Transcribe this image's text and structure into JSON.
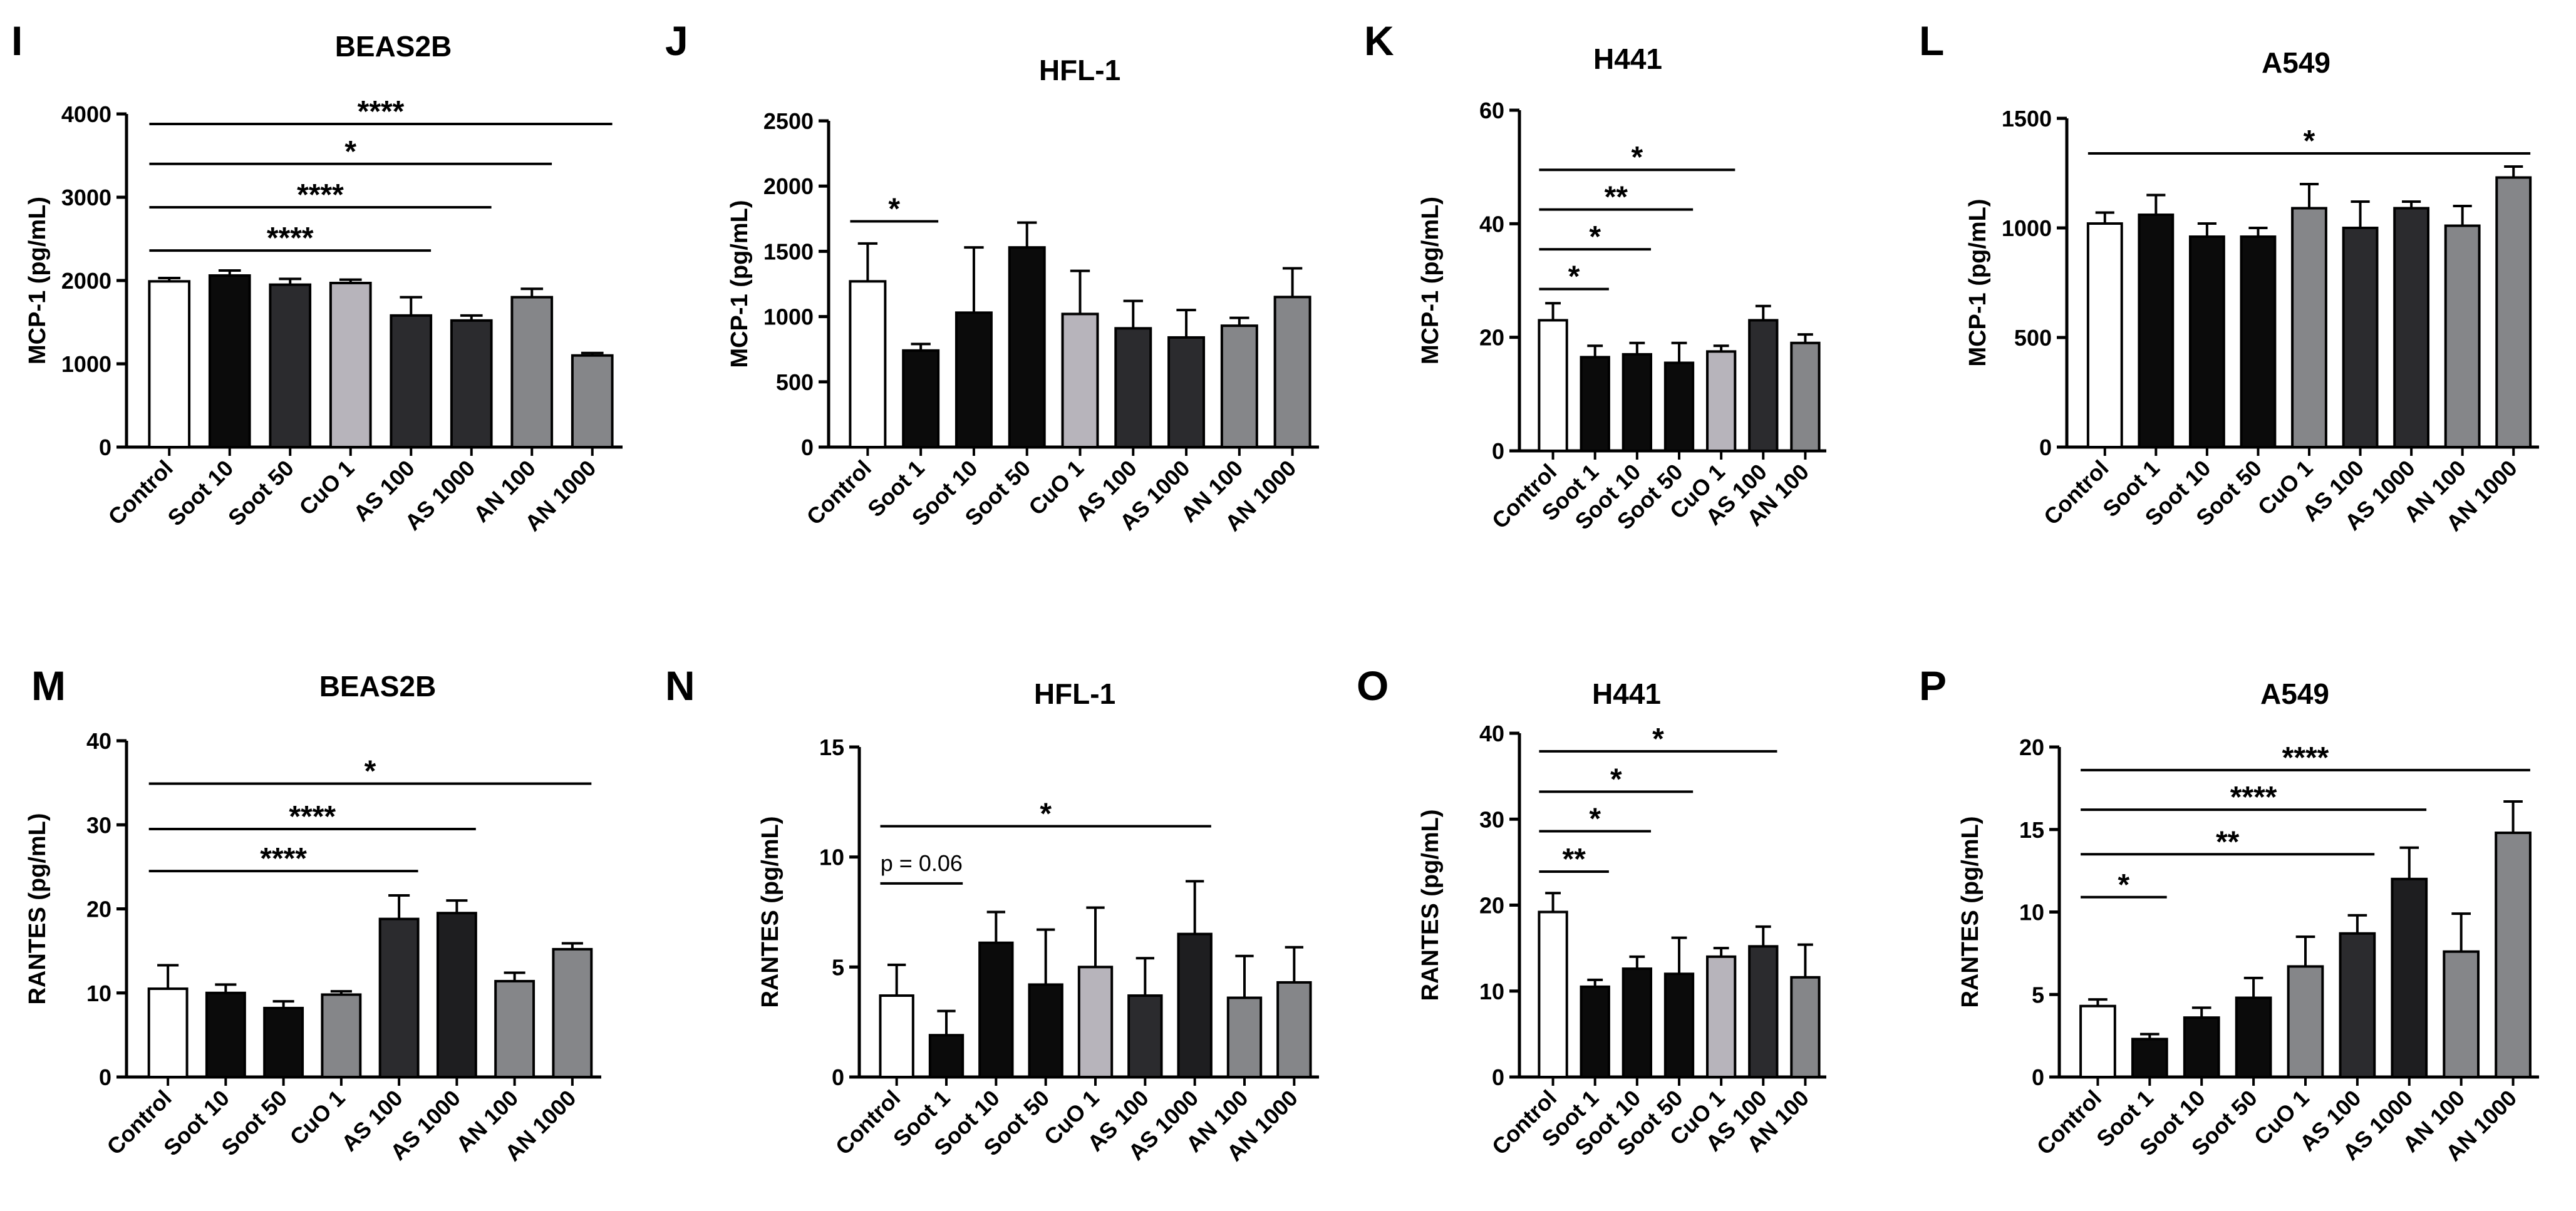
{
  "colors": {
    "white": "#ffffff",
    "black": "#0b0b0b",
    "light_gray": "#b7b4bb",
    "dark": "#2b2b2e",
    "darker": "#1e1e20",
    "medium_gray": "#858689",
    "axis": "#000000"
  },
  "chart_data": [
    {
      "panel": "I",
      "type": "bar",
      "title": "BEAS2B",
      "ylabel": "MCP-1 (pg/mL)",
      "ylim": [
        0,
        4000
      ],
      "yticks": [
        0,
        1000,
        2000,
        3000,
        4000
      ],
      "ytick_labels": [
        "0",
        "1000",
        "2000",
        "3000",
        "4000"
      ],
      "categories": [
        "Control",
        "Soot 10",
        "Soot 50",
        "CuO 1",
        "AS 100",
        "AS 1000",
        "AN 100",
        "AN 1000"
      ],
      "values": [
        1990,
        2060,
        1950,
        1970,
        1580,
        1520,
        1800,
        1100
      ],
      "errors": [
        40,
        60,
        70,
        40,
        220,
        60,
        100,
        30
      ],
      "bar_colors": [
        "white",
        "black",
        "dark",
        "light_gray",
        "dark",
        "dark",
        "medium_gray",
        "medium_gray"
      ],
      "significance": [
        {
          "from": 0,
          "to": 7,
          "y": 3880,
          "label": "****"
        },
        {
          "from": 0,
          "to": 6,
          "y": 3400,
          "label": "*"
        },
        {
          "from": 0,
          "to": 5,
          "y": 2880,
          "label": "****"
        },
        {
          "from": 0,
          "to": 4,
          "y": 2360,
          "label": "****"
        }
      ]
    },
    {
      "panel": "J",
      "type": "bar",
      "title": "HFL-1",
      "ylabel": "MCP-1 (pg/mL)",
      "ylim": [
        0,
        2500
      ],
      "yticks": [
        0,
        500,
        1000,
        1500,
        2000,
        2500
      ],
      "ytick_labels": [
        "0",
        "500",
        "1000",
        "1500",
        "2000",
        "2500"
      ],
      "categories": [
        "Control",
        "Soot 1",
        "Soot 10",
        "Soot 50",
        "CuO 1",
        "AS 100",
        "AS 1000",
        "AN 100",
        "AN 1000"
      ],
      "values": [
        1270,
        740,
        1030,
        1530,
        1020,
        910,
        840,
        930,
        1150
      ],
      "errors": [
        290,
        50,
        500,
        190,
        330,
        210,
        210,
        60,
        220
      ],
      "bar_colors": [
        "white",
        "black",
        "black",
        "black",
        "light_gray",
        "dark",
        "dark",
        "medium_gray",
        "medium_gray"
      ],
      "significance": [
        {
          "from": 0,
          "to": 1,
          "y": 1730,
          "label": "*"
        }
      ]
    },
    {
      "panel": "K",
      "type": "bar",
      "title": "H441",
      "ylabel": "MCP-1 (pg/mL)",
      "ylim": [
        0,
        60
      ],
      "yticks": [
        0,
        20,
        40,
        60
      ],
      "ytick_labels": [
        "0",
        "20",
        "40",
        "60"
      ],
      "categories": [
        "Control",
        "Soot 1",
        "Soot 10",
        "Soot 50",
        "CuO 1",
        "AS 100",
        "AN 100"
      ],
      "values": [
        23.0,
        16.5,
        17.0,
        15.5,
        17.5,
        23.0,
        19.0
      ],
      "errors": [
        3.0,
        2.0,
        2.0,
        3.5,
        1.0,
        2.5,
        1.5
      ],
      "bar_colors": [
        "white",
        "black",
        "black",
        "black",
        "light_gray",
        "dark",
        "medium_gray"
      ],
      "significance": [
        {
          "from": 0,
          "to": 4,
          "y": 49.5,
          "label": "*"
        },
        {
          "from": 0,
          "to": 3,
          "y": 42.5,
          "label": "**"
        },
        {
          "from": 0,
          "to": 2,
          "y": 35.5,
          "label": "*"
        },
        {
          "from": 0,
          "to": 1,
          "y": 28.5,
          "label": "*"
        }
      ]
    },
    {
      "panel": "L",
      "type": "bar",
      "title": "A549",
      "ylabel": "MCP-1 (pg/mL)",
      "ylim": [
        0,
        1500
      ],
      "yticks": [
        0,
        500,
        1000,
        1500
      ],
      "ytick_labels": [
        "0",
        "500",
        "1000",
        "1500"
      ],
      "categories": [
        "Control",
        "Soot 1",
        "Soot 10",
        "Soot 50",
        "CuO 1",
        "AS 100",
        "AS 1000",
        "AN 100",
        "AN 1000"
      ],
      "values": [
        1020,
        1060,
        960,
        960,
        1090,
        1000,
        1090,
        1010,
        1230
      ],
      "errors": [
        50,
        90,
        60,
        40,
        110,
        120,
        30,
        90,
        50
      ],
      "bar_colors": [
        "white",
        "black",
        "black",
        "black",
        "medium_gray",
        "dark",
        "dark",
        "medium_gray",
        "medium_gray"
      ],
      "significance": [
        {
          "from": 0,
          "to": 8,
          "y": 1340,
          "label": "*"
        }
      ]
    },
    {
      "panel": "M",
      "type": "bar",
      "title": "BEAS2B",
      "ylabel": "RANTES (pg/mL)",
      "ylim": [
        0,
        40
      ],
      "yticks": [
        0,
        10,
        20,
        30,
        40
      ],
      "ytick_labels": [
        "0",
        "10",
        "20",
        "30",
        "40"
      ],
      "categories": [
        "Control",
        "Soot 10",
        "Soot 50",
        "CuO 1",
        "AS 100",
        "AS 1000",
        "AN 100",
        "AN 1000"
      ],
      "values": [
        10.5,
        10.0,
        8.2,
        9.8,
        18.8,
        19.5,
        11.4,
        15.2
      ],
      "errors": [
        2.8,
        1.0,
        0.8,
        0.4,
        2.8,
        1.5,
        1.0,
        0.7
      ],
      "bar_colors": [
        "white",
        "black",
        "black",
        "medium_gray",
        "dark",
        "darker",
        "medium_gray",
        "medium_gray"
      ],
      "significance": [
        {
          "from": 0,
          "to": 7,
          "y": 34.9,
          "label": "*"
        },
        {
          "from": 0,
          "to": 5,
          "y": 29.5,
          "label": "****"
        },
        {
          "from": 0,
          "to": 4,
          "y": 24.5,
          "label": "****"
        }
      ]
    },
    {
      "panel": "N",
      "type": "bar",
      "title": "HFL-1",
      "ylabel": "RANTES (pg/mL)",
      "ylim": [
        0,
        15
      ],
      "yticks": [
        0,
        5,
        10,
        15
      ],
      "ytick_labels": [
        "0",
        "5",
        "10",
        "15"
      ],
      "categories": [
        "Control",
        "Soot 1",
        "Soot 10",
        "Soot 50",
        "CuO 1",
        "AS 100",
        "AS 1000",
        "AN 100",
        "AN 1000"
      ],
      "values": [
        3.7,
        1.9,
        6.1,
        4.2,
        5.0,
        3.7,
        6.5,
        3.6,
        4.3
      ],
      "errors": [
        1.4,
        1.1,
        1.4,
        2.5,
        2.7,
        1.7,
        2.4,
        1.9,
        1.6
      ],
      "bar_colors": [
        "white",
        "black",
        "black",
        "black",
        "light_gray",
        "dark",
        "darker",
        "medium_gray",
        "medium_gray"
      ],
      "significance": [
        {
          "from": 0,
          "to": 6,
          "y": 11.4,
          "label": "*"
        },
        {
          "from": 0,
          "to": 1,
          "y": 8.8,
          "label": "p = 0.06"
        }
      ]
    },
    {
      "panel": "O",
      "type": "bar",
      "title": "H441",
      "ylabel": "RANTES (pg/mL)",
      "ylim": [
        0,
        40
      ],
      "yticks": [
        0,
        10,
        20,
        30,
        40
      ],
      "ytick_labels": [
        "0",
        "10",
        "20",
        "30",
        "40"
      ],
      "categories": [
        "Control",
        "Soot 1",
        "Soot 10",
        "Soot 50",
        "CuO 1",
        "AS 100",
        "AN 100"
      ],
      "values": [
        19.2,
        10.5,
        12.6,
        12.0,
        14.0,
        15.2,
        11.6
      ],
      "errors": [
        2.2,
        0.8,
        1.4,
        4.2,
        1.0,
        2.3,
        3.8
      ],
      "bar_colors": [
        "white",
        "black",
        "black",
        "black",
        "light_gray",
        "dark",
        "medium_gray"
      ],
      "significance": [
        {
          "from": 0,
          "to": 5,
          "y": 37.9,
          "label": "*"
        },
        {
          "from": 0,
          "to": 3,
          "y": 33.2,
          "label": "*"
        },
        {
          "from": 0,
          "to": 2,
          "y": 28.6,
          "label": "*"
        },
        {
          "from": 0,
          "to": 1,
          "y": 23.9,
          "label": "**"
        }
      ]
    },
    {
      "panel": "P",
      "type": "bar",
      "title": "A549",
      "ylabel": "RANTES (pg/mL)",
      "ylim": [
        0,
        20
      ],
      "yticks": [
        0,
        5,
        10,
        15,
        20
      ],
      "ytick_labels": [
        "0",
        "5",
        "10",
        "15",
        "20"
      ],
      "categories": [
        "Control",
        "Soot 1",
        "Soot 10",
        "Soot 50",
        "CuO 1",
        "AS 100",
        "AS 1000",
        "AN 100",
        "AN 1000"
      ],
      "values": [
        4.3,
        2.3,
        3.6,
        4.8,
        6.7,
        8.7,
        12.0,
        7.6,
        14.8
      ],
      "errors": [
        0.4,
        0.3,
        0.6,
        1.2,
        1.8,
        1.1,
        1.9,
        2.3,
        1.9
      ],
      "bar_colors": [
        "white",
        "black",
        "black",
        "black",
        "medium_gray",
        "dark",
        "darker",
        "medium_gray",
        "medium_gray"
      ],
      "significance": [
        {
          "from": 0,
          "to": 8,
          "y": 18.6,
          "label": "****"
        },
        {
          "from": 0,
          "to": 6,
          "y": 16.2,
          "label": "****"
        },
        {
          "from": 0,
          "to": 5,
          "y": 13.5,
          "label": "**"
        },
        {
          "from": 0,
          "to": 1,
          "y": 10.9,
          "label": "*"
        }
      ]
    }
  ]
}
